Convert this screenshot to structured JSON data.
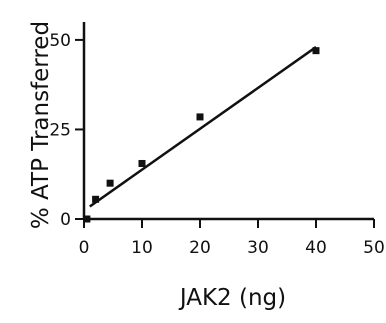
{
  "chart_data": {
    "type": "scatter",
    "xlabel": "JAK2 (ng)",
    "ylabel": "% ATP Transferred",
    "xlim": [
      0,
      50
    ],
    "ylim": [
      0,
      55
    ],
    "xticks": [
      0,
      10,
      20,
      30,
      40,
      50
    ],
    "yticks": [
      0,
      25,
      50
    ],
    "grid": false,
    "series": [
      {
        "points": [
          {
            "x": 0.5,
            "y": 0
          },
          {
            "x": 2,
            "y": 5.5
          },
          {
            "x": 4.5,
            "y": 10
          },
          {
            "x": 10,
            "y": 15.5
          },
          {
            "x": 20,
            "y": 28.5
          },
          {
            "x": 40,
            "y": 47
          }
        ]
      }
    ],
    "fit_line": {
      "x": [
        1,
        40
      ],
      "y": [
        3.5,
        48
      ]
    },
    "colors": {
      "ink": "#111111"
    }
  }
}
